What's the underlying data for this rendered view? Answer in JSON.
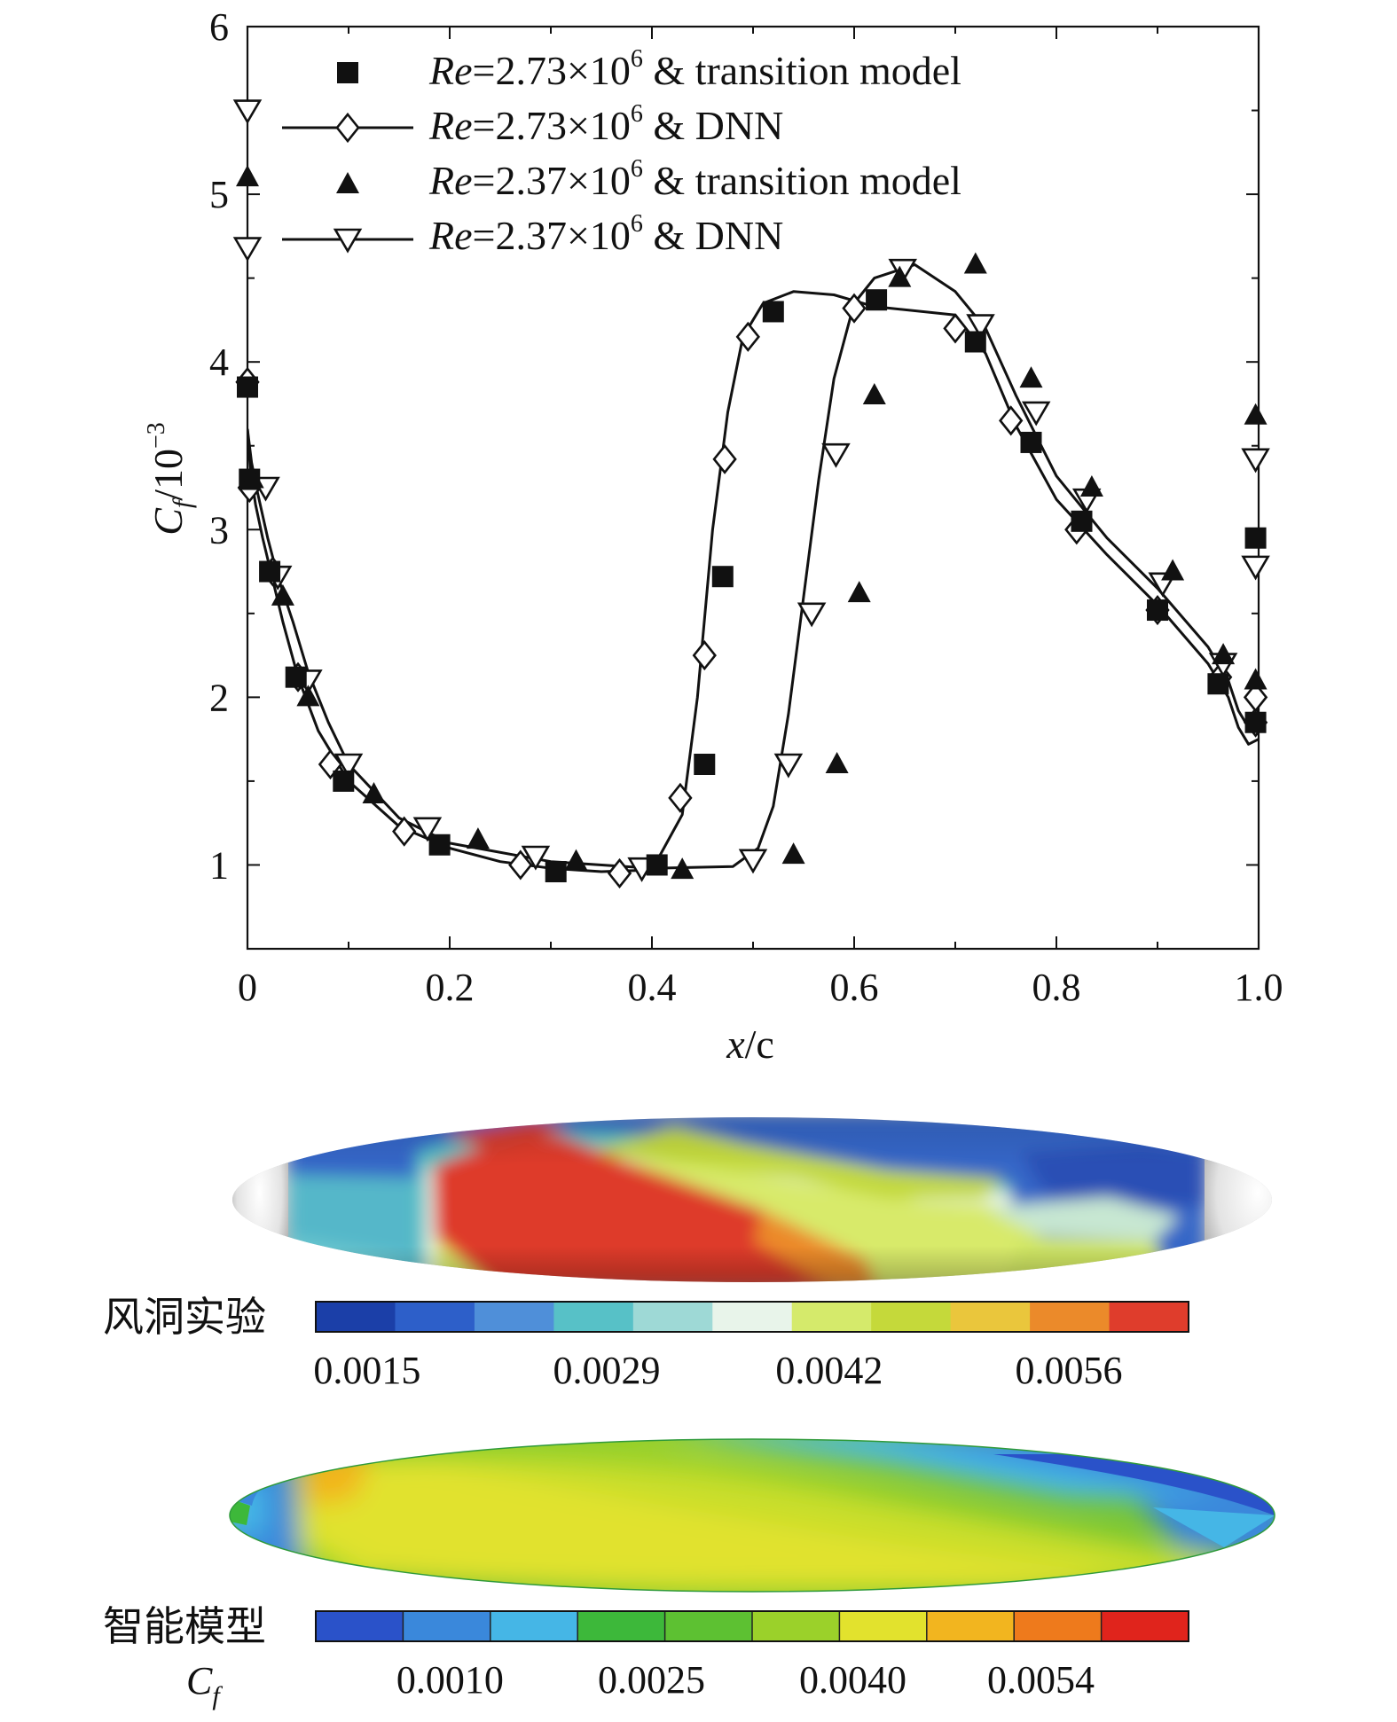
{
  "chart_data": [
    {
      "type": "line",
      "xlabel_italic": "x",
      "xlabel_rest": "/c",
      "ylabel_main": "C",
      "ylabel_sub": "f",
      "ylabel_rest": "/10",
      "ylabel_exp": "−3",
      "xlim": [
        0,
        1.0
      ],
      "ylim": [
        0.5,
        6
      ],
      "x_ticks": [
        "0",
        "0.2",
        "0.4",
        "0.6",
        "0.8",
        "1.0"
      ],
      "x_tick_values": [
        0,
        0.2,
        0.4,
        0.6,
        0.8,
        1.0
      ],
      "y_ticks": [
        "1",
        "2",
        "3",
        "4",
        "5",
        "6"
      ],
      "y_tick_values": [
        1,
        2,
        3,
        4,
        5,
        6
      ],
      "legend_position": "top-left",
      "series": [
        {
          "name_italic": "Re",
          "name_main": "=2.73×10",
          "name_exp": "6",
          "name_rest": " & transition model",
          "marker": "square-filled",
          "line": false,
          "x": [
            0,
            0.002,
            0.022,
            0.048,
            0.095,
            0.19,
            0.305,
            0.405,
            0.452,
            0.47,
            0.52,
            0.622,
            0.72,
            0.775,
            0.825,
            0.9,
            0.96,
            0.997,
            0.997
          ],
          "y": [
            3.85,
            3.3,
            2.75,
            2.12,
            1.5,
            1.12,
            0.96,
            1.0,
            1.6,
            2.72,
            4.3,
            4.37,
            4.12,
            3.52,
            3.05,
            2.52,
            2.08,
            1.85,
            2.95
          ]
        },
        {
          "name_italic": "Re",
          "name_main": "=2.73×10",
          "name_exp": "6",
          "name_rest": " & DNN",
          "marker": "diamond-open",
          "line": true,
          "x": [
            0,
            0.002,
            0.025,
            0.05,
            0.082,
            0.155,
            0.27,
            0.368,
            0.428,
            0.452,
            0.472,
            0.495,
            0.6,
            0.7,
            0.755,
            0.82,
            0.9,
            0.962,
            0.997,
            0.997
          ],
          "y": [
            3.88,
            3.25,
            2.75,
            2.12,
            1.6,
            1.2,
            1.0,
            0.95,
            1.4,
            2.25,
            3.42,
            4.15,
            4.32,
            4.2,
            3.65,
            3.0,
            2.52,
            2.12,
            1.85,
            2.0
          ],
          "line_x": [
            0,
            0.003,
            0.008,
            0.015,
            0.025,
            0.035,
            0.05,
            0.07,
            0.1,
            0.15,
            0.2,
            0.25,
            0.3,
            0.35,
            0.4,
            0.43,
            0.445,
            0.46,
            0.475,
            0.49,
            0.51,
            0.54,
            0.58,
            0.62,
            0.7,
            0.73,
            0.76,
            0.8,
            0.85,
            0.9,
            0.95,
            0.97,
            0.98,
            0.99,
            1.0
          ],
          "line_y": [
            3.6,
            3.35,
            3.15,
            2.95,
            2.7,
            2.45,
            2.12,
            1.8,
            1.5,
            1.23,
            1.1,
            1.02,
            0.98,
            0.96,
            0.97,
            1.3,
            2.0,
            3.0,
            3.7,
            4.15,
            4.35,
            4.42,
            4.4,
            4.33,
            4.28,
            4.05,
            3.62,
            3.18,
            2.85,
            2.55,
            2.2,
            2.0,
            1.82,
            1.72,
            1.75
          ]
        },
        {
          "name_italic": "Re",
          "name_main": "=2.37×10",
          "name_exp": "6",
          "name_rest": " & transition model",
          "marker": "triangle-up-filled",
          "line": false,
          "x": [
            0,
            0.005,
            0.035,
            0.06,
            0.125,
            0.228,
            0.325,
            0.43,
            0.54,
            0.583,
            0.605,
            0.62,
            0.645,
            0.72,
            0.775,
            0.835,
            0.915,
            0.965,
            0.997,
            0.997
          ],
          "y": [
            5.1,
            3.3,
            2.6,
            2.0,
            1.42,
            1.15,
            1.02,
            0.97,
            1.06,
            1.6,
            2.62,
            3.8,
            4.5,
            4.58,
            3.9,
            3.25,
            2.75,
            2.25,
            2.1,
            3.68
          ]
        },
        {
          "name_italic": "Re",
          "name_main": "=2.37×10",
          "name_exp": "6",
          "name_rest": " & DNN",
          "marker": "triangle-down-open",
          "line": true,
          "x": [
            0,
            0,
            0.018,
            0.03,
            0.06,
            0.1,
            0.178,
            0.285,
            0.39,
            0.5,
            0.535,
            0.558,
            0.582,
            0.648,
            0.725,
            0.78,
            0.83,
            0.905,
            0.965,
            0.997,
            0.997
          ],
          "y": [
            4.68,
            5.5,
            3.25,
            2.72,
            2.1,
            1.6,
            1.22,
            1.05,
            0.98,
            1.03,
            1.6,
            2.5,
            3.45,
            4.55,
            4.22,
            3.7,
            3.18,
            2.68,
            2.2,
            3.42,
            2.78
          ],
          "line_x": [
            0,
            0.004,
            0.01,
            0.02,
            0.03,
            0.045,
            0.06,
            0.08,
            0.1,
            0.15,
            0.2,
            0.3,
            0.4,
            0.48,
            0.505,
            0.52,
            0.535,
            0.55,
            0.565,
            0.58,
            0.6,
            0.62,
            0.66,
            0.7,
            0.73,
            0.76,
            0.8,
            0.85,
            0.9,
            0.95,
            0.97,
            0.98,
            0.99,
            1.0
          ],
          "line_y": [
            3.6,
            3.4,
            3.22,
            2.95,
            2.72,
            2.45,
            2.15,
            1.85,
            1.6,
            1.28,
            1.13,
            1.02,
            0.98,
            0.99,
            1.1,
            1.35,
            1.9,
            2.6,
            3.3,
            3.9,
            4.35,
            4.5,
            4.58,
            4.42,
            4.2,
            3.8,
            3.32,
            2.95,
            2.65,
            2.3,
            2.1,
            1.92,
            1.82,
            1.8
          ]
        }
      ]
    },
    {
      "type": "heatmap",
      "label": "风洞实验",
      "colorbar_ticks": [
        "0.0015",
        "0.0029",
        "0.0042",
        "0.0056"
      ],
      "colorbar_tick_values": [
        0.0015,
        0.0029,
        0.0042,
        0.0056
      ],
      "colorbar_range": [
        0.0012,
        0.0063
      ],
      "colors": [
        "#1b3fa8",
        "#2d5fc9",
        "#4f8fd9",
        "#57c1c7",
        "#9ed9d6",
        "#e8f4ea",
        "#d5ea6b",
        "#c5d93a",
        "#eac63c",
        "#eb8a2a",
        "#df3d2c"
      ]
    },
    {
      "type": "heatmap",
      "label": "智能模型",
      "colorbar_ticks": [
        "0.0010",
        "0.0025",
        "0.0040",
        "0.0054"
      ],
      "colorbar_tick_values": [
        0.001,
        0.0025,
        0.004,
        0.0054
      ],
      "colorbar_range": [
        0.0,
        0.0065
      ],
      "colorbar_prefix_main": "C",
      "colorbar_prefix_sub": "f",
      "colors": [
        "#2a52c9",
        "#3a88db",
        "#45b6e6",
        "#3db83a",
        "#5dc132",
        "#9bd12a",
        "#e2e22d",
        "#f2b51f",
        "#ee7a1c",
        "#e0241c"
      ]
    }
  ]
}
